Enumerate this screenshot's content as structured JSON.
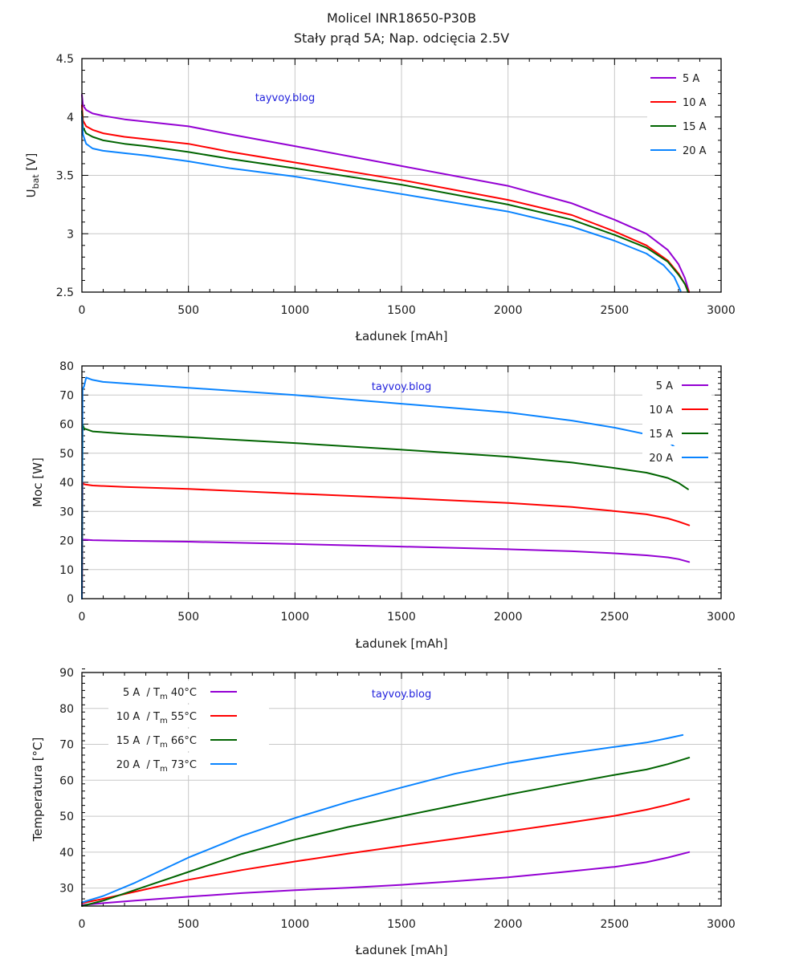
{
  "title": "Molicel INR18650-P30B",
  "subtitle": "Stały prąd 5A; Nap. odcięcia 2.5V",
  "colors": {
    "5A": "#9400d3",
    "10A": "#ff0000",
    "15A": "#006400",
    "20A": "#0a84ff",
    "watermark": "#2222dd"
  },
  "chart_data": [
    {
      "type": "line",
      "id": "voltage",
      "title": "",
      "xlabel": "Ładunek [mAh]",
      "ylabel": "U",
      "ylabel_sub": "bat",
      "ylabel_unit": " [V]",
      "xlim": [
        0,
        3000
      ],
      "ylim": [
        2.5,
        4.5
      ],
      "xticks": [
        0,
        500,
        1000,
        1500,
        2000,
        2500,
        3000
      ],
      "yticks": [
        2.5,
        3,
        3.5,
        4,
        4.5
      ],
      "ytick_labels": [
        "2.5",
        "3",
        "3.5",
        "4",
        "4.5"
      ],
      "x_minor": 100,
      "y_minor": 0.1,
      "grid": true,
      "legend": "top-right",
      "legend_side": "line-left",
      "watermark": "tayvoy.blog",
      "series": [
        {
          "name": "5 A",
          "color": "#9400d3",
          "x": [
            0,
            5,
            20,
            50,
            100,
            200,
            300,
            500,
            700,
            1000,
            1500,
            2000,
            2300,
            2500,
            2650,
            2750,
            2800,
            2830,
            2850
          ],
          "y": [
            4.19,
            4.1,
            4.06,
            4.03,
            4.01,
            3.98,
            3.96,
            3.92,
            3.85,
            3.75,
            3.58,
            3.41,
            3.26,
            3.12,
            3.0,
            2.86,
            2.74,
            2.62,
            2.5
          ]
        },
        {
          "name": "10 A",
          "color": "#ff0000",
          "x": [
            0,
            5,
            20,
            50,
            100,
            200,
            300,
            500,
            700,
            1000,
            1500,
            2000,
            2300,
            2500,
            2650,
            2750,
            2800,
            2830,
            2850
          ],
          "y": [
            4.1,
            3.97,
            3.92,
            3.89,
            3.86,
            3.83,
            3.81,
            3.77,
            3.7,
            3.61,
            3.46,
            3.29,
            3.16,
            3.02,
            2.9,
            2.77,
            2.66,
            2.57,
            2.5
          ]
        },
        {
          "name": "15 A",
          "color": "#006400",
          "x": [
            0,
            5,
            20,
            50,
            100,
            200,
            300,
            500,
            700,
            1000,
            1500,
            2000,
            2300,
            2500,
            2650,
            2750,
            2800,
            2830,
            2845
          ],
          "y": [
            4.05,
            3.91,
            3.86,
            3.83,
            3.8,
            3.77,
            3.75,
            3.7,
            3.64,
            3.56,
            3.42,
            3.25,
            3.12,
            2.99,
            2.88,
            2.76,
            2.65,
            2.57,
            2.5
          ]
        },
        {
          "name": "20 A",
          "color": "#0a84ff",
          "x": [
            0,
            5,
            20,
            50,
            100,
            200,
            300,
            500,
            700,
            1000,
            1500,
            2000,
            2300,
            2500,
            2650,
            2730,
            2780,
            2810
          ],
          "y": [
            4.0,
            3.85,
            3.77,
            3.73,
            3.71,
            3.69,
            3.67,
            3.62,
            3.56,
            3.49,
            3.34,
            3.19,
            3.06,
            2.94,
            2.83,
            2.73,
            2.63,
            2.51
          ]
        }
      ]
    },
    {
      "type": "line",
      "id": "power",
      "title": "",
      "xlabel": "Ładunek [mAh]",
      "ylabel": "Moc [W]",
      "xlim": [
        0,
        3000
      ],
      "ylim": [
        0,
        80
      ],
      "xticks": [
        0,
        500,
        1000,
        1500,
        2000,
        2500,
        3000
      ],
      "yticks": [
        0,
        10,
        20,
        30,
        40,
        50,
        60,
        70,
        80
      ],
      "ytick_labels": [
        "0",
        "10",
        "20",
        "30",
        "40",
        "50",
        "60",
        "70",
        "80"
      ],
      "x_minor": 100,
      "y_minor": 2,
      "grid": true,
      "legend": "top-right",
      "legend_side": "line-right",
      "watermark": "tayvoy.blog",
      "series": [
        {
          "name": "5 A",
          "color": "#9400d3",
          "x": [
            0,
            2,
            5,
            50,
            200,
            500,
            1000,
            1500,
            2000,
            2300,
            2500,
            2650,
            2750,
            2800,
            2850
          ],
          "y": [
            0,
            20.5,
            20.3,
            20.1,
            19.9,
            19.6,
            18.8,
            17.9,
            17.0,
            16.3,
            15.6,
            14.9,
            14.2,
            13.6,
            12.6
          ]
        },
        {
          "name": "10 A",
          "color": "#ff0000",
          "x": [
            0,
            3,
            10,
            50,
            200,
            500,
            1000,
            1500,
            2000,
            2300,
            2500,
            2650,
            2750,
            2800,
            2850
          ],
          "y": [
            0,
            40.0,
            39.3,
            38.9,
            38.4,
            37.7,
            36.1,
            34.6,
            32.9,
            31.5,
            30.1,
            29.0,
            27.6,
            26.5,
            25.2
          ]
        },
        {
          "name": "15 A",
          "color": "#006400",
          "x": [
            0,
            3,
            10,
            50,
            200,
            500,
            1000,
            1500,
            2000,
            2300,
            2500,
            2650,
            2750,
            2800,
            2845
          ],
          "y": [
            0,
            60.0,
            58.5,
            57.5,
            56.7,
            55.5,
            53.5,
            51.2,
            48.8,
            46.8,
            44.9,
            43.3,
            41.5,
            39.8,
            37.6
          ]
        },
        {
          "name": "20 A",
          "color": "#0a84ff",
          "x": [
            0,
            3,
            10,
            20,
            50,
            100,
            300,
            500,
            1000,
            1500,
            2000,
            2300,
            2500,
            2650,
            2750,
            2810
          ],
          "y": [
            0,
            72.0,
            73.0,
            76.0,
            75.2,
            74.5,
            73.5,
            72.5,
            70.0,
            67.0,
            64.0,
            61.2,
            58.8,
            56.5,
            54.0,
            50.5
          ]
        }
      ]
    },
    {
      "type": "line",
      "id": "temperature",
      "title": "",
      "xlabel": "Ładunek [mAh]",
      "ylabel": "Temperatura [°C]",
      "xlim": [
        0,
        3000
      ],
      "ylim": [
        25,
        90
      ],
      "xticks": [
        0,
        500,
        1000,
        1500,
        2000,
        2500,
        3000
      ],
      "yticks": [
        30,
        40,
        50,
        60,
        70,
        80,
        90
      ],
      "ytick_labels": [
        "30",
        "40",
        "50",
        "60",
        "70",
        "80",
        "90"
      ],
      "x_minor": 100,
      "y_minor": 2,
      "grid": true,
      "legend": "top-left",
      "legend_side": "line-right",
      "watermark": "tayvoy.blog",
      "series": [
        {
          "name": "5 A",
          "name_suffix": "  / T",
          "sub": "m",
          "tmax": " 40°C",
          "color": "#9400d3",
          "x": [
            0,
            100,
            250,
            500,
            750,
            1000,
            1250,
            1500,
            1750,
            2000,
            2250,
            2500,
            2650,
            2750,
            2850
          ],
          "y": [
            25.3,
            25.8,
            26.5,
            27.6,
            28.6,
            29.4,
            30.1,
            30.9,
            31.9,
            33.0,
            34.4,
            35.9,
            37.2,
            38.5,
            40.0
          ]
        },
        {
          "name": "10 A",
          "name_suffix": "  / T",
          "sub": "m",
          "tmax": " 55°C",
          "color": "#ff0000",
          "x": [
            0,
            100,
            250,
            500,
            750,
            1000,
            1250,
            1500,
            1750,
            2000,
            2250,
            2500,
            2650,
            2750,
            2850
          ],
          "y": [
            25.8,
            27.0,
            29.0,
            32.3,
            35.0,
            37.4,
            39.6,
            41.7,
            43.7,
            45.8,
            47.9,
            50.1,
            51.8,
            53.2,
            54.8
          ]
        },
        {
          "name": "15 A",
          "name_suffix": "  / T",
          "sub": "m",
          "tmax": " 66°C",
          "color": "#006400",
          "x": [
            0,
            100,
            250,
            500,
            750,
            1000,
            1250,
            1500,
            1750,
            2000,
            2250,
            2500,
            2650,
            2750,
            2850
          ],
          "y": [
            25.0,
            26.5,
            29.5,
            34.5,
            39.5,
            43.5,
            47.0,
            50.0,
            53.0,
            56.0,
            58.8,
            61.5,
            63.0,
            64.5,
            66.3
          ]
        },
        {
          "name": "20 A",
          "name_suffix": "  / T",
          "sub": "m",
          "tmax": " 73°C",
          "color": "#0a84ff",
          "x": [
            0,
            100,
            250,
            500,
            750,
            1000,
            1250,
            1500,
            1750,
            2000,
            2250,
            2500,
            2650,
            2750,
            2820
          ],
          "y": [
            26.0,
            27.8,
            31.5,
            38.5,
            44.5,
            49.5,
            54.0,
            58.0,
            61.8,
            64.8,
            67.2,
            69.3,
            70.5,
            71.7,
            72.6
          ]
        }
      ]
    }
  ]
}
